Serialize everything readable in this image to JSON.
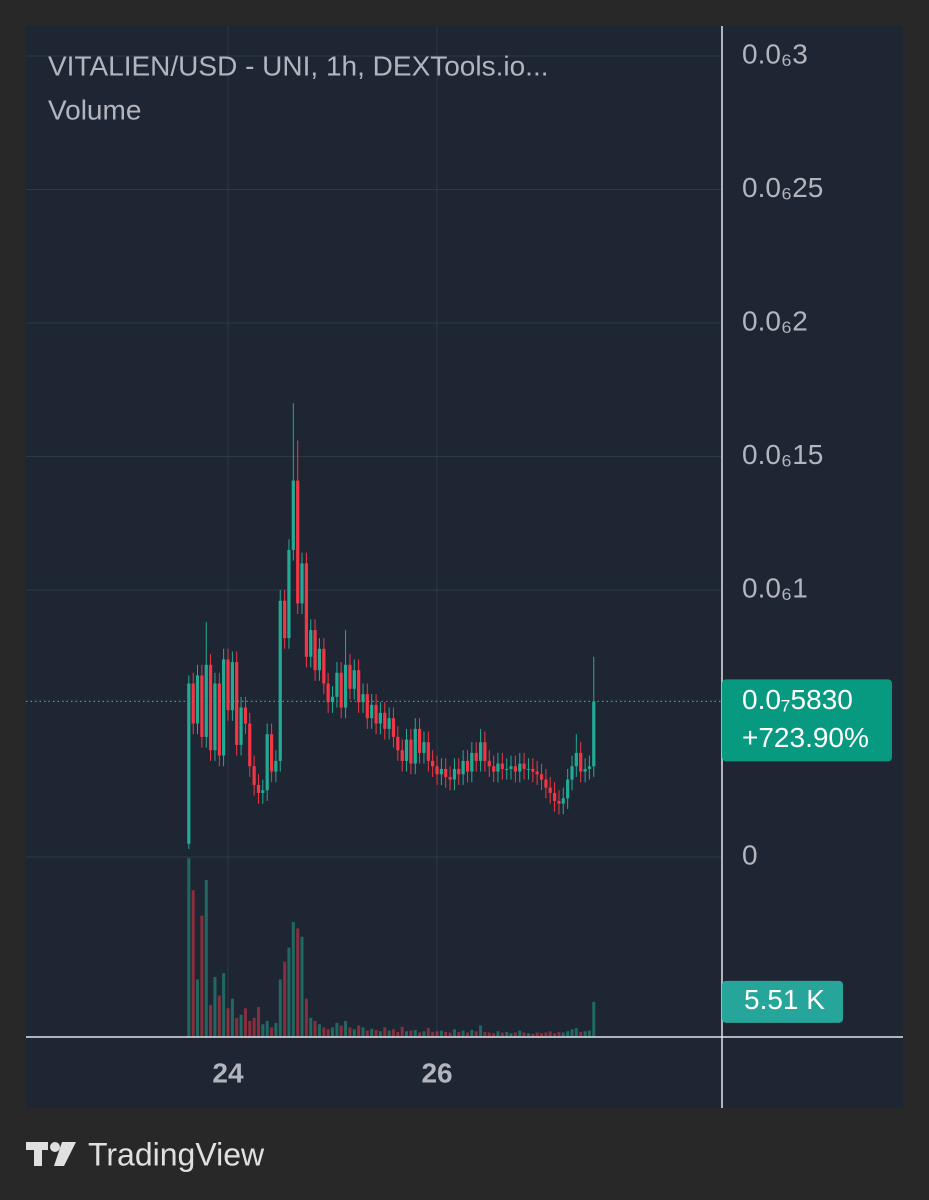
{
  "chart_data": {
    "type": "candlestick",
    "title": "VITALIEN/USD - UNI, 1h, DEXTools.io...",
    "subtitle": "Volume",
    "up_color": "#22ab94",
    "down_color": "#f23645",
    "x": [
      23.625,
      23.667,
      23.708,
      23.75,
      23.792,
      23.833,
      23.875,
      23.917,
      23.958,
      24,
      24.042,
      24.083,
      24.125,
      24.167,
      24.208,
      24.25,
      24.292,
      24.333,
      24.375,
      24.417,
      24.458,
      24.5,
      24.542,
      24.583,
      24.625,
      24.667,
      24.708,
      24.75,
      24.792,
      24.833,
      24.875,
      24.917,
      24.958,
      25,
      25.042,
      25.083,
      25.125,
      25.167,
      25.208,
      25.25,
      25.292,
      25.333,
      25.375,
      25.417,
      25.458,
      25.5,
      25.542,
      25.583,
      25.625,
      25.667,
      25.708,
      25.75,
      25.792,
      25.833,
      25.875,
      25.917,
      25.958,
      26,
      26.042,
      26.083,
      26.125,
      26.167,
      26.208,
      26.25,
      26.292,
      26.333,
      26.375,
      26.417,
      26.458,
      26.5,
      26.542,
      26.583,
      26.625,
      26.667,
      26.708,
      26.75,
      26.792,
      26.833,
      26.875,
      26.917,
      26.958,
      27,
      27.042,
      27.083,
      27.125,
      27.167,
      27.208,
      27.25,
      27.292,
      27.333,
      27.375,
      27.417,
      27.458,
      27.5
    ],
    "open": [
      5e-09,
      6.5e-08,
      5e-08,
      6.8e-08,
      4.5e-08,
      7.2e-08,
      4e-08,
      6.5e-08,
      3.8e-08,
      7.4e-08,
      5.5e-08,
      7.3e-08,
      4.2e-08,
      5.6e-08,
      5e-08,
      3.4e-08,
      2.7e-08,
      2.4e-08,
      2.5e-08,
      4.6e-08,
      3.2e-08,
      3.6e-08,
      9.6e-08,
      8.2e-08,
      1.15e-07,
      1.41e-07,
      9.5e-08,
      1.1e-07,
      7.5e-08,
      8.5e-08,
      7e-08,
      7.8e-08,
      6.5e-08,
      5.8e-08,
      6e-08,
      6.9e-08,
      5.6e-08,
      7.2e-08,
      6.3e-08,
      7e-08,
      5.8e-08,
      6.1e-08,
      5.2e-08,
      5.7e-08,
      5e-08,
      5.4e-08,
      4.8e-08,
      5.2e-08,
      4.5e-08,
      4e-08,
      3.6e-08,
      4.4e-08,
      3.5e-08,
      4.8e-08,
      3.9e-08,
      4.3e-08,
      3.6e-08,
      3.4e-08,
      3.1e-08,
      3.3e-08,
      3e-08,
      2.9e-08,
      3.3e-08,
      3.1e-08,
      3.6e-08,
      3.2e-08,
      3.9e-08,
      3.6e-08,
      4.3e-08,
      3.6e-08,
      3.4e-08,
      3.2e-08,
      3.5e-08,
      3.3e-08,
      3.3e-08,
      3.4e-08,
      3.2e-08,
      3.5e-08,
      3.3e-08,
      3.3e-08,
      3.2e-08,
      3.1e-08,
      2.9e-08,
      2.6e-08,
      2.4e-08,
      2.1e-08,
      2e-08,
      2.2e-08,
      2.9e-08,
      3.4e-08,
      3.9e-08,
      3.2e-08,
      3.3e-08,
      3.4e-08
    ],
    "high": [
      6.8e-08,
      6.9e-08,
      7.2e-08,
      7.2e-08,
      8.8e-08,
      7.6e-08,
      6.9e-08,
      6.9e-08,
      7.8e-08,
      7.8e-08,
      7.7e-08,
      7.7e-08,
      6e-08,
      6e-08,
      5.4e-08,
      3.8e-08,
      3.1e-08,
      2.9e-08,
      5e-08,
      5e-08,
      4e-08,
      1e-07,
      1e-07,
      1.19e-07,
      1.7e-07,
      1.56e-07,
      1.14e-07,
      1.14e-07,
      8.9e-08,
      8.9e-08,
      8.2e-08,
      8.2e-08,
      6.9e-08,
      6.4e-08,
      7.3e-08,
      7.3e-08,
      8.5e-08,
      7.6e-08,
      7.4e-08,
      7.4e-08,
      6.5e-08,
      6.5e-08,
      6.1e-08,
      6.1e-08,
      5.8e-08,
      5.8e-08,
      5.6e-08,
      5.6e-08,
      4.9e-08,
      4.4e-08,
      4.8e-08,
      4.8e-08,
      5.2e-08,
      5.2e-08,
      4.7e-08,
      4.7e-08,
      4e-08,
      3.8e-08,
      3.7e-08,
      3.7e-08,
      3.4e-08,
      3.7e-08,
      3.7e-08,
      4e-08,
      4e-08,
      4.3e-08,
      4.3e-08,
      4.8e-08,
      4.7e-08,
      4e-08,
      3.8e-08,
      3.9e-08,
      3.9e-08,
      3.7e-08,
      3.8e-08,
      3.8e-08,
      3.9e-08,
      3.9e-08,
      3.7e-08,
      3.7e-08,
      3.6e-08,
      3.5e-08,
      3.3e-08,
      3e-08,
      2.8e-08,
      2.5e-08,
      2.6e-08,
      3.3e-08,
      3.8e-08,
      4.6e-08,
      4.3e-08,
      3.7e-08,
      3.8e-08,
      7.5e-08
    ],
    "low": [
      3e-09,
      4.6e-08,
      4.6e-08,
      4.1e-08,
      4.1e-08,
      3.6e-08,
      3.6e-08,
      3.4e-08,
      3.4e-08,
      5.1e-08,
      5.1e-08,
      3.8e-08,
      3.8e-08,
      4.6e-08,
      3e-08,
      2.3e-08,
      2e-08,
      2e-08,
      2.1e-08,
      2.8e-08,
      2.8e-08,
      3.2e-08,
      7.8e-08,
      7.8e-08,
      1.11e-07,
      9.1e-08,
      9.1e-08,
      7.1e-08,
      7.1e-08,
      6.6e-08,
      6.6e-08,
      6.1e-08,
      5.4e-08,
      5.4e-08,
      5.6e-08,
      5.2e-08,
      5.2e-08,
      5.9e-08,
      5.9e-08,
      5.4e-08,
      5.4e-08,
      4.8e-08,
      4.8e-08,
      4.6e-08,
      4.6e-08,
      4.4e-08,
      4.4e-08,
      4.1e-08,
      3.6e-08,
      3.2e-08,
      3.2e-08,
      3.1e-08,
      3.1e-08,
      3.5e-08,
      3.5e-08,
      3.2e-08,
      3e-08,
      2.7e-08,
      2.7e-08,
      2.6e-08,
      2.5e-08,
      2.5e-08,
      2.7e-08,
      2.7e-08,
      2.8e-08,
      2.8e-08,
      3.2e-08,
      3.2e-08,
      3.2e-08,
      3e-08,
      2.8e-08,
      2.8e-08,
      2.9e-08,
      2.9e-08,
      2.9e-08,
      2.8e-08,
      2.8e-08,
      2.9e-08,
      2.9e-08,
      2.8e-08,
      2.7e-08,
      2.5e-08,
      2.2e-08,
      2e-08,
      1.7e-08,
      1.6e-08,
      1.6e-08,
      1.8e-08,
      2.5e-08,
      3e-08,
      2.8e-08,
      2.8e-08,
      2.9e-08,
      3e-08
    ],
    "close": [
      6.5e-08,
      5e-08,
      6.8e-08,
      4.5e-08,
      7.2e-08,
      4e-08,
      6.5e-08,
      3.8e-08,
      7.4e-08,
      5.5e-08,
      7.3e-08,
      4.2e-08,
      5.6e-08,
      5e-08,
      3.4e-08,
      2.7e-08,
      2.4e-08,
      2.5e-08,
      4.6e-08,
      3.2e-08,
      3.6e-08,
      9.6e-08,
      8.2e-08,
      1.15e-07,
      1.41e-07,
      9.5e-08,
      1.1e-07,
      7.5e-08,
      8.5e-08,
      7e-08,
      7.8e-08,
      6.5e-08,
      5.8e-08,
      6e-08,
      6.9e-08,
      5.6e-08,
      7.2e-08,
      6.3e-08,
      7e-08,
      5.8e-08,
      6.1e-08,
      5.2e-08,
      5.7e-08,
      5e-08,
      5.4e-08,
      4.8e-08,
      5.2e-08,
      4.5e-08,
      4e-08,
      3.6e-08,
      4.4e-08,
      3.5e-08,
      4.8e-08,
      3.9e-08,
      4.3e-08,
      3.6e-08,
      3.4e-08,
      3.1e-08,
      3.3e-08,
      3e-08,
      2.9e-08,
      3.3e-08,
      3.1e-08,
      3.6e-08,
      3.2e-08,
      3.9e-08,
      3.6e-08,
      4.3e-08,
      3.6e-08,
      3.4e-08,
      3.2e-08,
      3.5e-08,
      3.3e-08,
      3.3e-08,
      3.4e-08,
      3.2e-08,
      3.5e-08,
      3.3e-08,
      3.3e-08,
      3.2e-08,
      3.1e-08,
      2.9e-08,
      2.6e-08,
      2.4e-08,
      2.1e-08,
      2e-08,
      2.2e-08,
      2.9e-08,
      3.4e-08,
      3.9e-08,
      3.2e-08,
      3.3e-08,
      3.4e-08,
      5.83e-08
    ],
    "volume": [
      28000,
      23000,
      9000,
      19000,
      24600,
      5000,
      9400,
      6500,
      10000,
      4500,
      6000,
      3000,
      3500,
      4500,
      2500,
      3000,
      4700,
      2000,
      2500,
      1500,
      2200,
      9000,
      11800,
      14000,
      18000,
      17000,
      15700,
      6000,
      3000,
      2500,
      2000,
      1500,
      1200,
      1500,
      2200,
      1800,
      2500,
      1500,
      1200,
      1800,
      1500,
      1000,
      1300,
      1100,
      900,
      1500,
      1000,
      1200,
      800,
      1600,
      900,
      1000,
      1100,
      700,
      900,
      1400,
      800,
      900,
      1000,
      800,
      700,
      1200,
      800,
      1000,
      700,
      1100,
      900,
      1800,
      800,
      700,
      600,
      900,
      700,
      800,
      600,
      700,
      1000,
      700,
      600,
      500,
      700,
      600,
      700,
      900,
      600,
      800,
      700,
      900,
      1200,
      1400,
      800,
      900,
      1000,
      5510
    ],
    "xlim": [
      22.067,
      28.727
    ],
    "xticks": [
      24,
      26
    ],
    "ylim": [
      -6.74e-08,
      3.105e-07
    ],
    "yticks": [
      {
        "value": 3e-07,
        "label": "0.0₆3"
      },
      {
        "value": 2.5e-07,
        "label": "0.0₆25"
      },
      {
        "value": 2e-07,
        "label": "0.0₆2"
      },
      {
        "value": 1.5e-07,
        "label": "0.0₆15"
      },
      {
        "value": 1e-07,
        "label": "0.0₆1"
      },
      0
    ],
    "volume_ylim": [
      0,
      158000
    ],
    "last_close_label": "0.0₇5830",
    "change_label": "+723.90%",
    "last_volume_label": "5.51 K",
    "grid": true
  },
  "footer": {
    "brand": "TradingView"
  }
}
